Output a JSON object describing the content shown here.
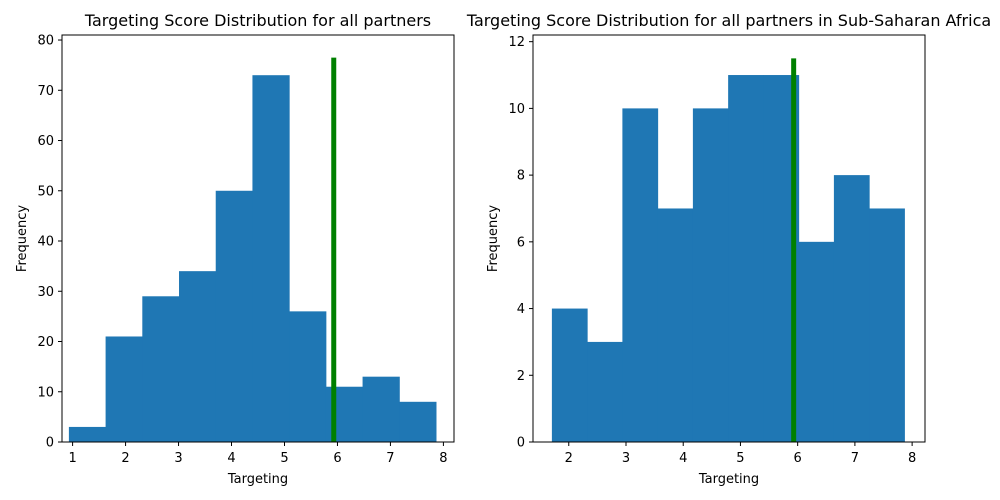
{
  "chart_data": [
    {
      "type": "bar",
      "subtype": "histogram",
      "title": "Targeting Score Distribution for all partners",
      "xlabel": "Targeting",
      "ylabel": "Frequency",
      "xlim": [
        0.8,
        8.2
      ],
      "ylim": [
        0,
        81
      ],
      "xticks": [
        1,
        2,
        3,
        4,
        5,
        6,
        7,
        8
      ],
      "yticks": [
        0,
        10,
        20,
        30,
        40,
        50,
        60,
        70,
        80
      ],
      "bin_edges": [
        0.93,
        1.623,
        2.316,
        3.009,
        3.702,
        4.395,
        5.088,
        5.781,
        6.474,
        7.167,
        7.86
      ],
      "values": [
        3,
        21,
        29,
        34,
        50,
        73,
        26,
        11,
        13,
        8
      ],
      "bar_color": "#1f77b4",
      "marker_line": {
        "x": 5.93,
        "y_top": 76.5,
        "color": "#008000"
      },
      "grid": false
    },
    {
      "type": "bar",
      "subtype": "histogram",
      "title": "Targeting Score Distribution for all partners in Sub-Saharan Africa",
      "xlabel": "Targeting",
      "ylabel": "Frequency",
      "xlim": [
        1.375,
        8.225
      ],
      "ylim": [
        0,
        12.2
      ],
      "xticks": [
        2,
        3,
        4,
        5,
        6,
        7,
        8
      ],
      "yticks": [
        0,
        2,
        4,
        6,
        8,
        10,
        12
      ],
      "bin_edges": [
        1.705,
        2.321,
        2.937,
        3.553,
        4.169,
        4.785,
        5.401,
        6.017,
        6.633,
        7.249,
        7.865
      ],
      "values": [
        4,
        3,
        10,
        7,
        10,
        11,
        11,
        6,
        8,
        7
      ],
      "bar_color": "#1f77b4",
      "marker_line": {
        "x": 5.93,
        "y_top": 11.5,
        "color": "#008000"
      },
      "grid": false
    }
  ]
}
